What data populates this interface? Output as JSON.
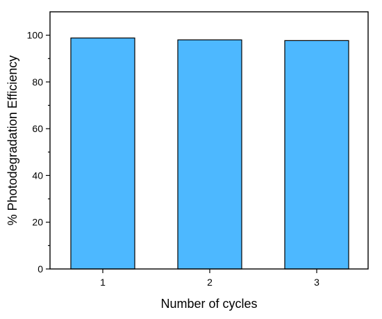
{
  "chart_data": {
    "type": "bar",
    "categories": [
      "1",
      "2",
      "3"
    ],
    "values": [
      98.8,
      98.0,
      97.7
    ],
    "title": "",
    "xlabel": "Number of cycles",
    "ylabel": "% Photodegradation Efficiency",
    "ylim": [
      0,
      110
    ],
    "yticks": [
      "0",
      "20",
      "40",
      "60",
      "80",
      "100"
    ],
    "grid": false,
    "legend": "none",
    "bar_color": "#4DB8FF",
    "edge_color": "#000000"
  }
}
